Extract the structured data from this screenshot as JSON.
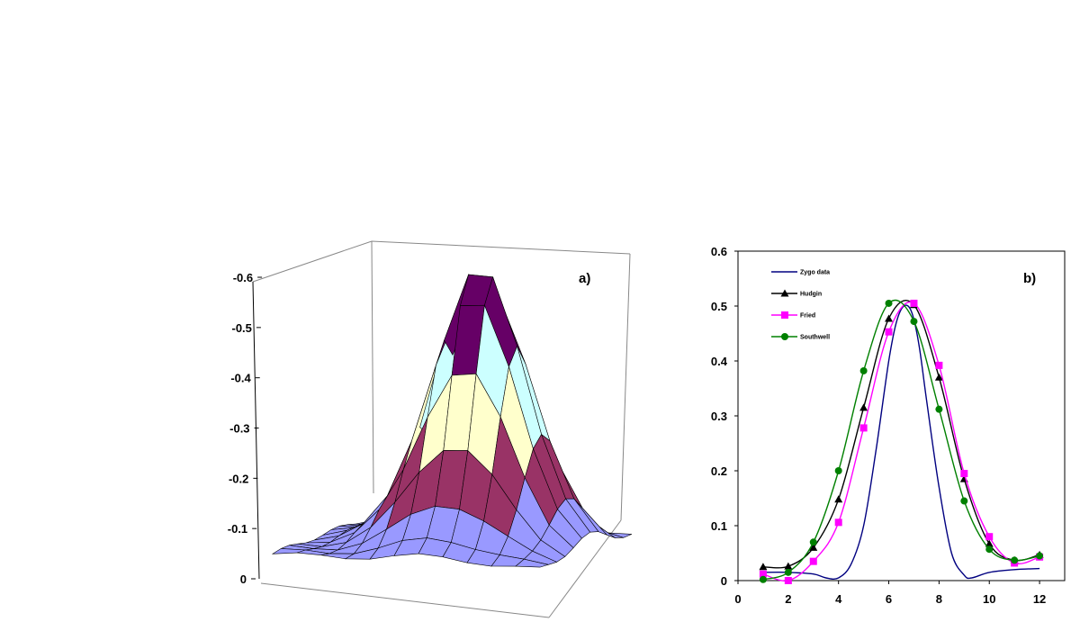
{
  "chart_data": [
    {
      "type": "surface3d",
      "panel_label": "a)",
      "z_axis": {
        "ticks": [
          "-0.6",
          "-0.5",
          "-0.4",
          "-0.3",
          "-0.2",
          "-0.1",
          "0"
        ],
        "values": [
          -0.6,
          -0.5,
          -0.4,
          -0.3,
          -0.2,
          -0.1,
          0
        ],
        "range": [
          0,
          -0.6
        ]
      },
      "grid_size": [
        12,
        12
      ],
      "peak_value": -0.55,
      "color_bands": [
        {
          "range": "0 to -0.1",
          "color": "#9999ff"
        },
        {
          "range": "-0.1 to -0.2",
          "color": "#993366"
        },
        {
          "range": "-0.2 to -0.3",
          "color": "#ffffcc"
        },
        {
          "range": "-0.3 to -0.4",
          "color": "#ccffff"
        },
        {
          "range": "-0.4 to -0.5",
          "color": "#660066"
        }
      ]
    },
    {
      "type": "line",
      "panel_label": "b)",
      "xlim": [
        0,
        13
      ],
      "ylim": [
        0,
        0.6
      ],
      "x_ticks": [
        "0",
        "2",
        "4",
        "6",
        "8",
        "10",
        "12"
      ],
      "x_tick_values": [
        0,
        2,
        4,
        6,
        8,
        10,
        12
      ],
      "y_ticks": [
        "0",
        "0.1",
        "0.2",
        "0.3",
        "0.4",
        "0.5",
        "0.6"
      ],
      "y_tick_values": [
        0,
        0.1,
        0.2,
        0.3,
        0.4,
        0.5,
        0.6
      ],
      "legend_position": "top-left",
      "series": [
        {
          "name": "Zygo data",
          "color": "#000080",
          "marker": "none",
          "x": [
            1,
            2,
            3,
            3.5,
            4,
            4.5,
            5,
            5.5,
            6,
            6.3,
            6.6,
            6.9,
            7.2,
            7.5,
            8,
            8.5,
            9,
            9.3,
            10,
            11,
            12
          ],
          "y": [
            0.015,
            0.015,
            0.012,
            0.005,
            0.005,
            0.03,
            0.1,
            0.24,
            0.4,
            0.47,
            0.5,
            0.49,
            0.43,
            0.33,
            0.17,
            0.05,
            0.01,
            0.005,
            0.015,
            0.02,
            0.022
          ]
        },
        {
          "name": "Hudgin",
          "color": "#000000",
          "marker": "triangle",
          "x": [
            1,
            2,
            3,
            4,
            5,
            6,
            7,
            8,
            9,
            10,
            11,
            12
          ],
          "y": [
            0.025,
            0.026,
            0.06,
            0.148,
            0.315,
            0.477,
            0.502,
            0.37,
            0.185,
            0.067,
            0.037,
            0.047
          ]
        },
        {
          "name": "Fried",
          "color": "#ff00ff",
          "marker": "square",
          "x": [
            1,
            2,
            3,
            4,
            5,
            6,
            7,
            8,
            9,
            10,
            11,
            12
          ],
          "y": [
            0.012,
            0.0,
            0.035,
            0.106,
            0.278,
            0.453,
            0.505,
            0.392,
            0.195,
            0.08,
            0.032,
            0.043
          ]
        },
        {
          "name": "Southwell",
          "color": "#008000",
          "marker": "circle",
          "x": [
            1,
            2,
            3,
            4,
            5,
            6,
            7,
            8,
            9,
            10,
            11,
            12
          ],
          "y": [
            0.002,
            0.015,
            0.07,
            0.2,
            0.382,
            0.505,
            0.472,
            0.312,
            0.145,
            0.057,
            0.037,
            0.045
          ]
        }
      ]
    }
  ]
}
